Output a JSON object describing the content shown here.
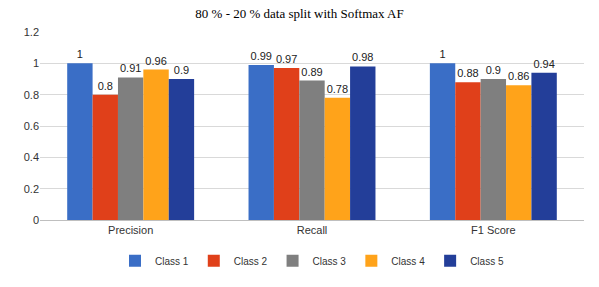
{
  "chart_data": {
    "type": "bar",
    "title": "80 % - 20 % data split with Softmax AF",
    "categories": [
      "Precision",
      "Recall",
      "F1 Score"
    ],
    "series": [
      {
        "name": "Class 1",
        "color": "#3a6ec6",
        "values": [
          1,
          0.99,
          1
        ]
      },
      {
        "name": "Class 2",
        "color": "#e0401a",
        "values": [
          0.8,
          0.97,
          0.88
        ]
      },
      {
        "name": "Class 3",
        "color": "#7f7f7f",
        "values": [
          0.91,
          0.89,
          0.9
        ]
      },
      {
        "name": "Class 4",
        "color": "#ffa31a",
        "values": [
          0.96,
          0.78,
          0.86
        ]
      },
      {
        "name": "Class 5",
        "color": "#233e99",
        "values": [
          0.9,
          0.98,
          0.94
        ]
      }
    ],
    "ylim": [
      0,
      1.2
    ],
    "yticks": [
      0,
      0.2,
      0.4,
      0.6,
      0.8,
      1,
      1.2
    ],
    "grid": true,
    "legend": "bottom",
    "data_labels": true
  }
}
